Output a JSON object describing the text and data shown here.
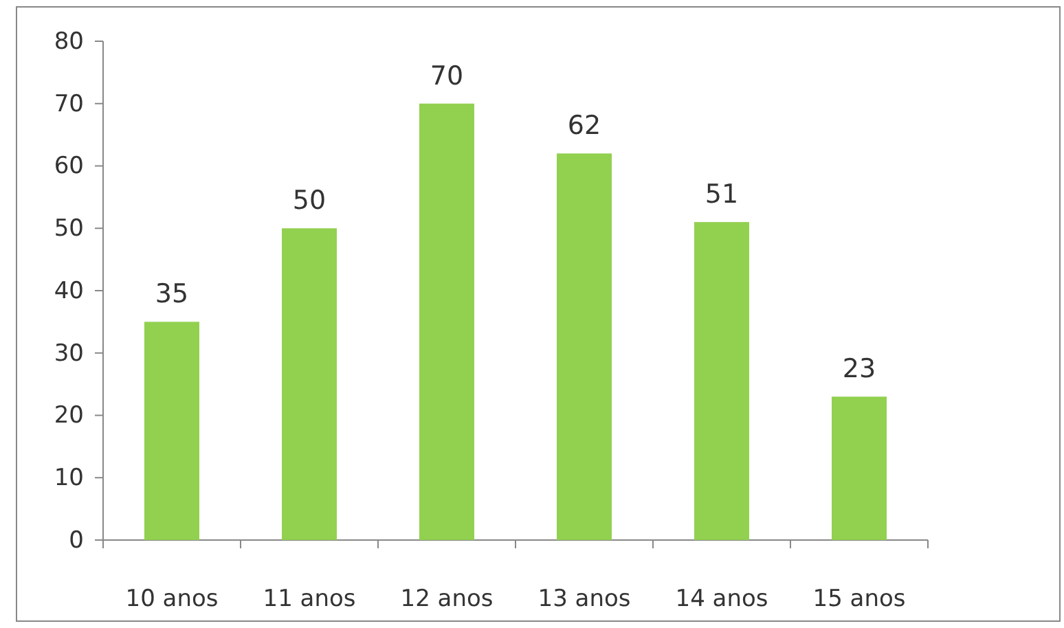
{
  "chart_data": {
    "type": "bar",
    "categories": [
      "10 anos",
      "11 anos",
      "12 anos",
      "13 anos",
      "14 anos",
      "15 anos"
    ],
    "values": [
      35,
      50,
      70,
      62,
      51,
      23
    ],
    "color": "#92d050",
    "ylim": [
      0,
      80
    ],
    "yticks": [
      0,
      10,
      20,
      30,
      40,
      50,
      60,
      70,
      80
    ],
    "grid": false,
    "data_labels": true
  }
}
